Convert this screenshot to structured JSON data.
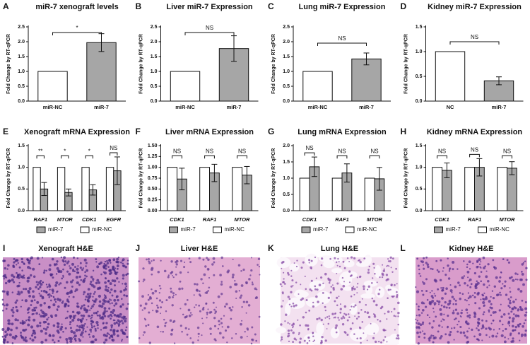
{
  "chart_data": [
    {
      "type": "bar",
      "panel": "A",
      "title": "miR-7 xenograft levels",
      "ylabel": "Fold Change by RT-qPCR",
      "categories": [
        "miR-NC",
        "miR-7"
      ],
      "values": [
        1.0,
        1.97
      ],
      "errors": [
        0,
        0.3
      ],
      "colors": [
        "#ffffff",
        "#a6a6a6"
      ],
      "significance": "*",
      "ylim": [
        0,
        2.5
      ],
      "yticks": [
        {
          "value": 0,
          "label": "0.0"
        },
        0.5,
        {
          "value": 1,
          "label": "1.0"
        },
        1.5,
        {
          "value": 2,
          "label": "2.0"
        },
        2.5
      ]
    },
    {
      "type": "bar",
      "panel": "B",
      "title": "Liver miR-7 Expression",
      "ylabel": "Fold Change by RT-qPCR",
      "categories": [
        "miR-NC",
        "miR-7"
      ],
      "values": [
        1.0,
        1.77
      ],
      "errors": [
        0,
        0.43
      ],
      "colors": [
        "#ffffff",
        "#a6a6a6"
      ],
      "significance": "NS",
      "ylim": [
        0,
        2.5
      ],
      "yticks": [
        {
          "value": 0,
          "label": "0.0"
        },
        0.5,
        {
          "value": 1,
          "label": "1.0"
        },
        1.5,
        {
          "value": 2,
          "label": "2.0"
        },
        2.5
      ]
    },
    {
      "type": "bar",
      "panel": "C",
      "title": "Lung miR-7 Expression",
      "ylabel": "Fold Change by RT-qPCR",
      "categories": [
        "miR-NC",
        "miR-7"
      ],
      "values": [
        1.0,
        1.42
      ],
      "errors": [
        0,
        0.2
      ],
      "colors": [
        "#ffffff",
        "#a6a6a6"
      ],
      "significance": "NS",
      "ylim": [
        0,
        2.5
      ],
      "yticks": [
        {
          "value": 0,
          "label": "0.0"
        },
        0.5,
        {
          "value": 1,
          "label": "1.0"
        },
        1.5,
        {
          "value": 2,
          "label": "2.0"
        },
        2.5
      ]
    },
    {
      "type": "bar",
      "panel": "D",
      "title": "Kidney miR-7 Expression",
      "ylabel": "Fold Change by RT-qPCR",
      "categories": [
        "NC",
        "miR-7"
      ],
      "values": [
        1.0,
        0.41
      ],
      "errors": [
        0,
        0.08
      ],
      "colors": [
        "#ffffff",
        "#a6a6a6"
      ],
      "significance": "NS",
      "ylim": [
        0,
        1.5
      ],
      "yticks": [
        {
          "value": 0,
          "label": "0.0"
        },
        0.5,
        {
          "value": 1,
          "label": "1.0"
        },
        1.5
      ]
    },
    {
      "type": "bar",
      "panel": "E",
      "title": "Xenograft mRNA Expression",
      "ylabel": "Fold Change by RT-qPCR",
      "categories": [
        "RAF1",
        "MTOR",
        "CDK1",
        "EGFR"
      ],
      "series": [
        {
          "name": "miR-NC",
          "color": "#ffffff",
          "values": [
            1.0,
            1.0,
            1.0,
            1.0
          ],
          "errors": [
            0,
            0,
            0,
            0
          ]
        },
        {
          "name": "miR-7",
          "color": "#a6a6a6",
          "values": [
            0.5,
            0.42,
            0.48,
            0.92
          ],
          "errors": [
            0.15,
            0.08,
            0.12,
            0.32
          ]
        }
      ],
      "significance": [
        "**",
        "*",
        "*",
        "NS"
      ],
      "ylim": [
        0,
        1.5
      ],
      "yticks": [
        {
          "value": 0,
          "label": "0.0"
        },
        0.5,
        {
          "value": 1,
          "label": "1.0"
        },
        1.5
      ]
    },
    {
      "type": "bar",
      "panel": "F",
      "title": "Liver mRNA Expression",
      "ylabel": "Fold Change by RT-qPCR",
      "categories": [
        "CDK1",
        "RAF1",
        "MTOR"
      ],
      "series": [
        {
          "name": "miR-NC",
          "color": "#ffffff",
          "values": [
            1.0,
            1.0,
            1.0
          ],
          "errors": [
            0,
            0,
            0
          ]
        },
        {
          "name": "miR-7",
          "color": "#a6a6a6",
          "values": [
            0.73,
            0.87,
            0.82
          ],
          "errors": [
            0.25,
            0.2,
            0.2
          ]
        }
      ],
      "significance": [
        "NS",
        "NS",
        "NS"
      ],
      "ylim": [
        0,
        1.5
      ],
      "yticks": [
        {
          "value": 0,
          "label": "0.00"
        },
        0.25,
        {
          "value": 0.5,
          "label": "0.50"
        },
        0.75,
        {
          "value": 1,
          "label": "1.00"
        },
        1.25,
        {
          "value": 1.5,
          "label": "1.50"
        }
      ]
    },
    {
      "type": "bar",
      "panel": "G",
      "title": "Lung mRNA  Expression",
      "ylabel": "Fold Change by RT-qPCR",
      "categories": [
        "CDK1",
        "RAF1",
        "MTOR"
      ],
      "series": [
        {
          "name": "miR-NC",
          "color": "#ffffff",
          "values": [
            1.0,
            1.0,
            1.0
          ],
          "errors": [
            0,
            0,
            0
          ]
        },
        {
          "name": "miR-7",
          "color": "#a6a6a6",
          "values": [
            1.35,
            1.16,
            0.98
          ],
          "errors": [
            0.3,
            0.28,
            0.35
          ]
        }
      ],
      "significance": [
        "NS",
        "NS",
        "NS"
      ],
      "ylim": [
        0,
        2
      ],
      "yticks": [
        {
          "value": 0,
          "label": "0.0"
        },
        0.5,
        {
          "value": 1,
          "label": "1.0"
        },
        1.5,
        {
          "value": 2,
          "label": "2.0"
        }
      ]
    },
    {
      "type": "bar",
      "panel": "H",
      "title": "Kidney mRNA Expression",
      "ylabel": "Fold Change by RT-qPCR",
      "categories": [
        "CDK1",
        "RAF1",
        "MTOR"
      ],
      "series": [
        {
          "name": "miR-NC",
          "color": "#ffffff",
          "values": [
            1.0,
            1.0,
            1.0
          ],
          "errors": [
            0,
            0,
            0
          ]
        },
        {
          "name": "miR-7",
          "color": "#a6a6a6",
          "values": [
            0.93,
            1.0,
            0.98
          ],
          "errors": [
            0.17,
            0.2,
            0.15
          ]
        }
      ],
      "significance": [
        "NS",
        "NS",
        "NS"
      ],
      "ylim": [
        0,
        1.5
      ],
      "yticks": [
        {
          "value": 0,
          "label": "0.0"
        },
        0.5,
        {
          "value": 1,
          "label": "1.0"
        },
        1.5
      ]
    }
  ],
  "images": [
    {
      "panel": "I",
      "title": "Xenograft H&E"
    },
    {
      "panel": "J",
      "title": "Liver H&E"
    },
    {
      "panel": "K",
      "title": "Lung H&E"
    },
    {
      "panel": "L",
      "title": "Kidney H&E"
    }
  ]
}
